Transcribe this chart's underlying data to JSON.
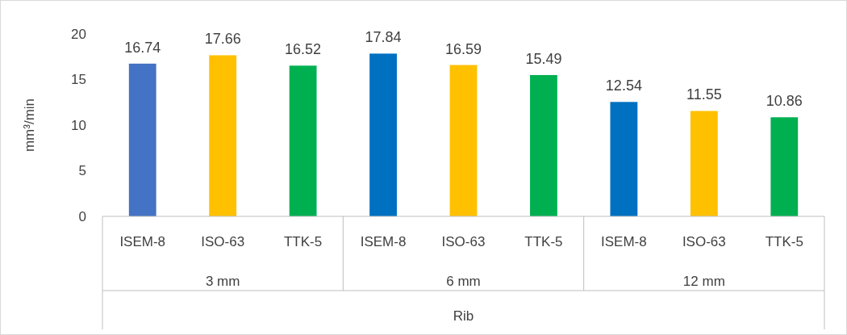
{
  "chart_data": {
    "type": "bar",
    "ylabel": "mm³/min",
    "xlabel": "Rib",
    "categories": [
      "ISEM-8",
      "ISO-63",
      "TTK-5",
      "ISEM-8",
      "ISO-63",
      "TTK-5",
      "ISEM-8",
      "ISO-63",
      "TTK-5"
    ],
    "values": [
      16.74,
      17.66,
      16.52,
      17.84,
      16.59,
      15.49,
      12.54,
      11.55,
      10.86
    ],
    "colors": [
      "#4472c4",
      "#ffc000",
      "#00b050",
      "#0070c0",
      "#ffc000",
      "#00b050",
      "#0070c0",
      "#ffc000",
      "#00b050"
    ],
    "annotations": [
      "3 mm",
      "6 mm",
      "12 mm"
    ],
    "ylim": [
      0,
      20
    ],
    "yticks": [
      0,
      5,
      10,
      15,
      20
    ],
    "data_labels": true,
    "grid": false
  }
}
